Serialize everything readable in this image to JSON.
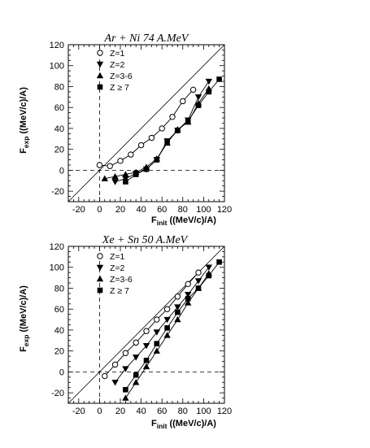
{
  "chart_data": [
    {
      "type": "line",
      "title": "Ar + Ni 74 A.MeV",
      "xlabel_main": "F",
      "xlabel_sub": "init",
      "xlabel_unit": "((MeV/c)/A)",
      "ylabel_main": "F",
      "ylabel_sub": "exp",
      "ylabel_unit": "((MeV/c)/A)",
      "xlim": [
        -30,
        120
      ],
      "ylim": [
        -30,
        120
      ],
      "xticks": [
        "-20",
        "0",
        "20",
        "40",
        "60",
        "80",
        "100",
        "120"
      ],
      "yticks": [
        "-20",
        "0",
        "20",
        "40",
        "60",
        "80",
        "100",
        "120"
      ],
      "series": [
        {
          "name": "Z=1",
          "marker": "circle-open",
          "x": [
            0,
            10,
            20,
            30,
            40,
            50,
            60,
            70,
            80,
            90
          ],
          "y": [
            5,
            4,
            9,
            15,
            24,
            31,
            40,
            51,
            66,
            77
          ]
        },
        {
          "name": "Z=2",
          "marker": "triangle-down",
          "x": [
            15,
            25,
            35,
            45,
            55,
            65,
            75,
            85,
            95,
            105
          ],
          "y": [
            -11,
            -8,
            -3,
            1,
            10,
            28,
            38,
            48,
            70,
            85
          ]
        },
        {
          "name": "Z=3-6",
          "marker": "triangle-up",
          "x": [
            5,
            15,
            25,
            35,
            45,
            55,
            65,
            75,
            85,
            95,
            105
          ],
          "y": [
            -8,
            -6,
            -4,
            -2,
            3,
            11,
            26,
            39,
            46,
            64,
            78
          ]
        },
        {
          "name": "Z ≥ 7",
          "marker": "square",
          "x": [
            25,
            35,
            45,
            55,
            65,
            75,
            85,
            95,
            105,
            115
          ],
          "y": [
            -11,
            -4,
            1,
            10,
            27,
            38,
            47,
            62,
            75,
            87
          ]
        }
      ]
    },
    {
      "type": "line",
      "title": "Xe + Sn 50 A.MeV",
      "xlabel_main": "F",
      "xlabel_sub": "init",
      "xlabel_unit": "((MeV/c)/A)",
      "ylabel_main": "F",
      "ylabel_sub": "exp",
      "ylabel_unit": "((MeV/c)/A)",
      "xlim": [
        -30,
        120
      ],
      "ylim": [
        -30,
        120
      ],
      "xticks": [
        "-20",
        "0",
        "20",
        "40",
        "60",
        "80",
        "100",
        "120"
      ],
      "yticks": [
        "-20",
        "0",
        "20",
        "40",
        "60",
        "80",
        "100",
        "120"
      ],
      "series": [
        {
          "name": "Z=1",
          "marker": "circle-open",
          "x": [
            5,
            15,
            25,
            35,
            45,
            55,
            65,
            75,
            85,
            95
          ],
          "y": [
            -4,
            7,
            18,
            28,
            39,
            50,
            60,
            72,
            84,
            95
          ]
        },
        {
          "name": "Z=2",
          "marker": "triangle-down",
          "x": [
            15,
            25,
            35,
            45,
            55,
            65,
            75,
            85,
            95,
            105
          ],
          "y": [
            -10,
            3,
            14,
            25,
            38,
            50,
            62,
            74,
            87,
            100
          ]
        },
        {
          "name": "Z=3-6",
          "marker": "triangle-up",
          "x": [
            25,
            35,
            45,
            55,
            65,
            75,
            85,
            95,
            105
          ],
          "y": [
            -25,
            -10,
            5,
            20,
            35,
            50,
            66,
            80,
            94
          ]
        },
        {
          "name": "Z ≥ 7",
          "marker": "square",
          "x": [
            25,
            35,
            45,
            55,
            65,
            75,
            85,
            95,
            105,
            115
          ],
          "y": [
            -17,
            -3,
            11,
            27,
            42,
            57,
            70,
            80,
            92,
            105
          ]
        }
      ]
    }
  ],
  "legend": {
    "labels": [
      "Z=1",
      "Z=2",
      "Z=3-6",
      "Z ≥ 7"
    ],
    "placement": "top-left"
  },
  "dashed_reference_lines": {
    "x": 0,
    "y": 0
  },
  "diagonal_reference": "y = x"
}
